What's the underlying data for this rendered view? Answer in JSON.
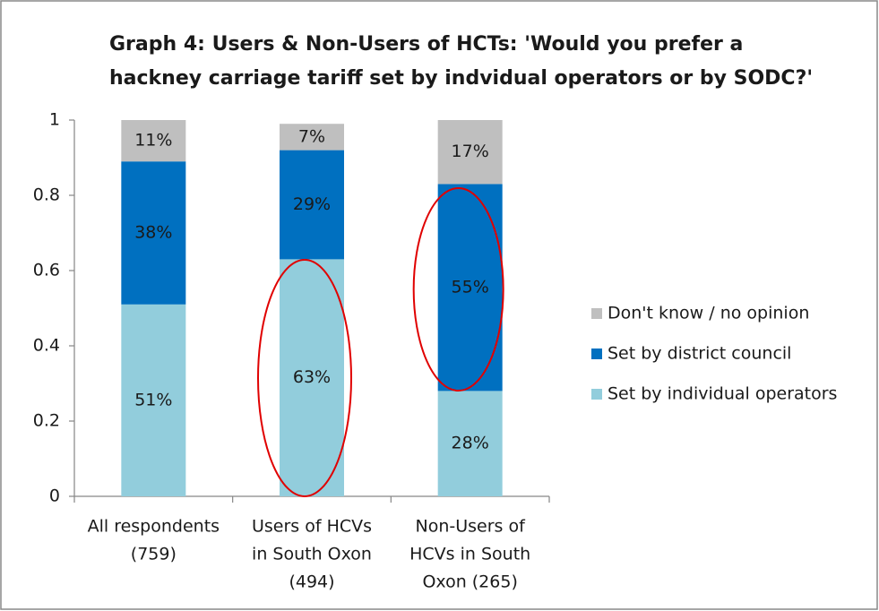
{
  "chart_data": {
    "type": "stacked_bar",
    "title": [
      "Graph 4: Users & Non-Users of HCTs: 'Would you prefer a",
      "hackney carriage tariff set by indvidual operators or by SODC?'"
    ],
    "categories": [
      [
        "All respondents",
        "(759)"
      ],
      [
        "Users of HCVs",
        "in South Oxon",
        "(494)"
      ],
      [
        "Non-Users of",
        "HCVs in South",
        "Oxon (265)"
      ]
    ],
    "series": [
      {
        "name": "Set by individual operators",
        "color": "#92cddc",
        "values": [
          0.51,
          0.63,
          0.28
        ],
        "value_labels": [
          "51%",
          "63%",
          "28%"
        ]
      },
      {
        "name": "Set by district council",
        "color": "#0070c0",
        "values": [
          0.38,
          0.29,
          0.55
        ],
        "value_labels": [
          "38%",
          "29%",
          "55%"
        ]
      },
      {
        "name": "Don't know / no opinion",
        "color": "#bfbfbf",
        "values": [
          0.11,
          0.07,
          0.17
        ],
        "value_labels": [
          "11%",
          "7%",
          "17%"
        ]
      }
    ],
    "ylim": [
      0,
      1
    ],
    "yticks": [
      0,
      0.2,
      0.4,
      0.6,
      0.8,
      1
    ],
    "grid": false,
    "legend": "right"
  }
}
